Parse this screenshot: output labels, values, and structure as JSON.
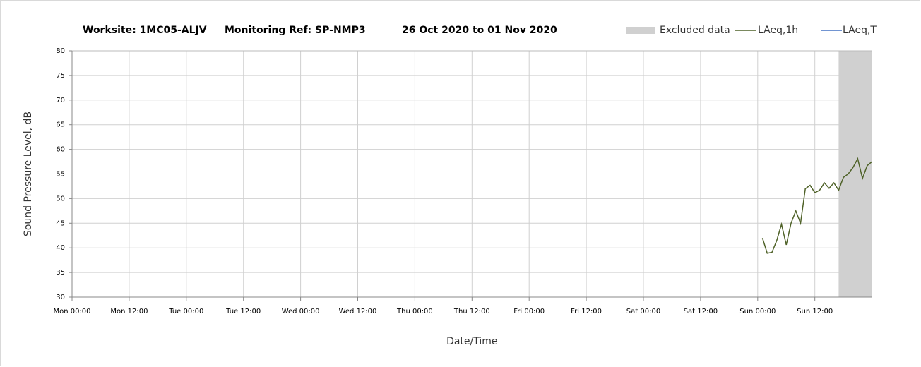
{
  "chart_data": {
    "type": "line",
    "title": [
      "Worksite: 1MC05-ALJV",
      "Monitoring Ref: SP-NMP3",
      "26 Oct 2020 to 01 Nov 2020"
    ],
    "x_label": "Date/Time",
    "y_label": "Sound Pressure Level, dB",
    "excluded_label": "Excluded data",
    "excluded": [
      161,
      168
    ],
    "excluded_color": "#d0d0d0",
    "xlim": [
      0,
      168
    ],
    "xticks": [
      {
        "value": 0,
        "label": "Mon 00:00"
      },
      {
        "value": 12,
        "label": "Mon 12:00"
      },
      {
        "value": 24,
        "label": "Tue 00:00"
      },
      {
        "value": 36,
        "label": "Tue 12:00"
      },
      {
        "value": 48,
        "label": "Wed 00:00"
      },
      {
        "value": 60,
        "label": "Wed 12:00"
      },
      {
        "value": 72,
        "label": "Thu 00:00"
      },
      {
        "value": 84,
        "label": "Thu 12:00"
      },
      {
        "value": 96,
        "label": "Fri 00:00"
      },
      {
        "value": 108,
        "label": "Fri 12:00"
      },
      {
        "value": 120,
        "label": "Sat 00:00"
      },
      {
        "value": 132,
        "label": "Sat 12:00"
      },
      {
        "value": 144,
        "label": "Sun 00:00"
      },
      {
        "value": 156,
        "label": "Sun 12:00"
      }
    ],
    "ylim": [
      30,
      80
    ],
    "yticks": [
      30,
      35,
      40,
      45,
      50,
      55,
      60,
      65,
      70,
      75,
      80
    ],
    "grid": true,
    "x": [
      145,
      146,
      147,
      148,
      149,
      150,
      151,
      152,
      153,
      154,
      155,
      156,
      157,
      158,
      159,
      160,
      161,
      162,
      163,
      164,
      165,
      166,
      167,
      168
    ],
    "series": [
      {
        "name": "LAeq,1h",
        "color": "#4f6228",
        "values": [
          42,
          38.9,
          39.1,
          41.5,
          44.8,
          40.6,
          45,
          47.5,
          45,
          52,
          52.7,
          51.2,
          51.7,
          53.2,
          52.1,
          53.2,
          51.7,
          54.3,
          55,
          56.3,
          58.1,
          54.1,
          56.7,
          57.5
        ]
      },
      {
        "name": "LAeq,T",
        "color": "#4472c4",
        "values": [
          null,
          null,
          null,
          null,
          null,
          null,
          null,
          null,
          null,
          null,
          null,
          null,
          null,
          null,
          null,
          null,
          null,
          null,
          null,
          null,
          null,
          null,
          null,
          null
        ]
      }
    ]
  }
}
